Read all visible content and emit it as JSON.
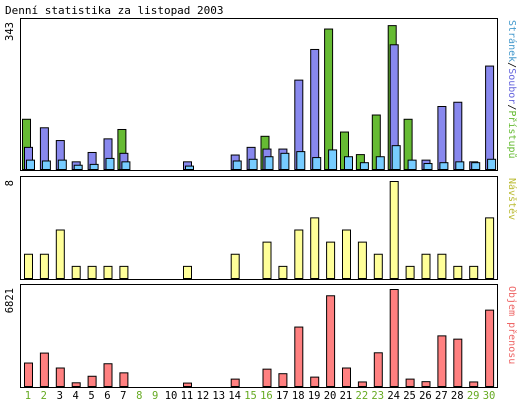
{
  "title": "Denní statistika za listopad 2003",
  "colors": {
    "frame": "#000000",
    "hits_fill": "#66bb33",
    "files_fill": "#8888ee",
    "pages_fill": "#77ccff",
    "visits_fill": "#ffff99",
    "kbytes_fill": "#ff8080",
    "weekday_label": "#000000",
    "weekend_label": "#66aa22"
  },
  "chart_data": {
    "type": "bar",
    "days": [
      "1",
      "2",
      "3",
      "4",
      "5",
      "6",
      "7",
      "8",
      "9",
      "10",
      "11",
      "12",
      "13",
      "14",
      "15",
      "16",
      "17",
      "18",
      "19",
      "20",
      "21",
      "22",
      "23",
      "24",
      "25",
      "26",
      "27",
      "28",
      "29",
      "30"
    ],
    "weekend_days": [
      "1",
      "2",
      "8",
      "9",
      "15",
      "16",
      "22",
      "23",
      "29",
      "30"
    ],
    "panels": [
      {
        "id": "traffic",
        "ymax_label": "343",
        "ymax": 343,
        "legend": [
          {
            "text": "Stránek",
            "color": "#4499cc"
          },
          {
            "text": "/",
            "color": "#000000"
          },
          {
            "text": "Soubor",
            "color": "#6666dd"
          },
          {
            "text": "/",
            "color": "#000000"
          },
          {
            "text": "Přístupů",
            "color": "#66bb33"
          }
        ],
        "series": [
          {
            "name": "Přístupů",
            "values": [
              118,
              0,
              0,
              0,
              0,
              0,
              94,
              0,
              0,
              0,
              0,
              0,
              0,
              0,
              0,
              78,
              0,
              0,
              0,
              330,
              88,
              35,
              128,
              338,
              118,
              0,
              0,
              0,
              0,
              0
            ]
          },
          {
            "name": "Soubor",
            "values": [
              52,
              98,
              68,
              18,
              40,
              72,
              38,
              0,
              0,
              0,
              18,
              0,
              0,
              34,
              52,
              48,
              48,
              210,
              282,
              0,
              0,
              0,
              0,
              293,
              0,
              22,
              148,
              158,
              18,
              243
            ]
          },
          {
            "name": "Stránek",
            "values": [
              22,
              20,
              22,
              10,
              12,
              26,
              18,
              0,
              0,
              0,
              8,
              0,
              0,
              20,
              24,
              30,
              38,
              42,
              28,
              46,
              30,
              16,
              30,
              56,
              22,
              14,
              16,
              18,
              16,
              24
            ]
          }
        ]
      },
      {
        "id": "visits",
        "ymax_label": "8",
        "ymax": 8,
        "legend": [
          {
            "text": "Návštěv",
            "color": "#bbbb33"
          }
        ],
        "series": [
          {
            "name": "Návštěv",
            "values": [
              2,
              2,
              4,
              1,
              1,
              1,
              1,
              0,
              0,
              0,
              1,
              0,
              0,
              2,
              0,
              3,
              1,
              4,
              5,
              3,
              4,
              3,
              2,
              8,
              1,
              2,
              2,
              1,
              1,
              5
            ]
          }
        ]
      },
      {
        "id": "kbytes",
        "ymax_label": "6821",
        "ymax": 6821,
        "legend": [
          {
            "text": "Objem přenosu",
            "color": "#ee6666"
          }
        ],
        "series": [
          {
            "name": "Objem přenosu",
            "values": [
              1650,
              2350,
              1300,
              260,
              720,
              1600,
              960,
              0,
              0,
              0,
              240,
              0,
              0,
              520,
              0,
              1220,
              900,
              4180,
              660,
              6380,
              1300,
              320,
              2370,
              6821,
              520,
              340,
              3560,
              3330,
              320,
              5370
            ]
          }
        ]
      }
    ]
  }
}
